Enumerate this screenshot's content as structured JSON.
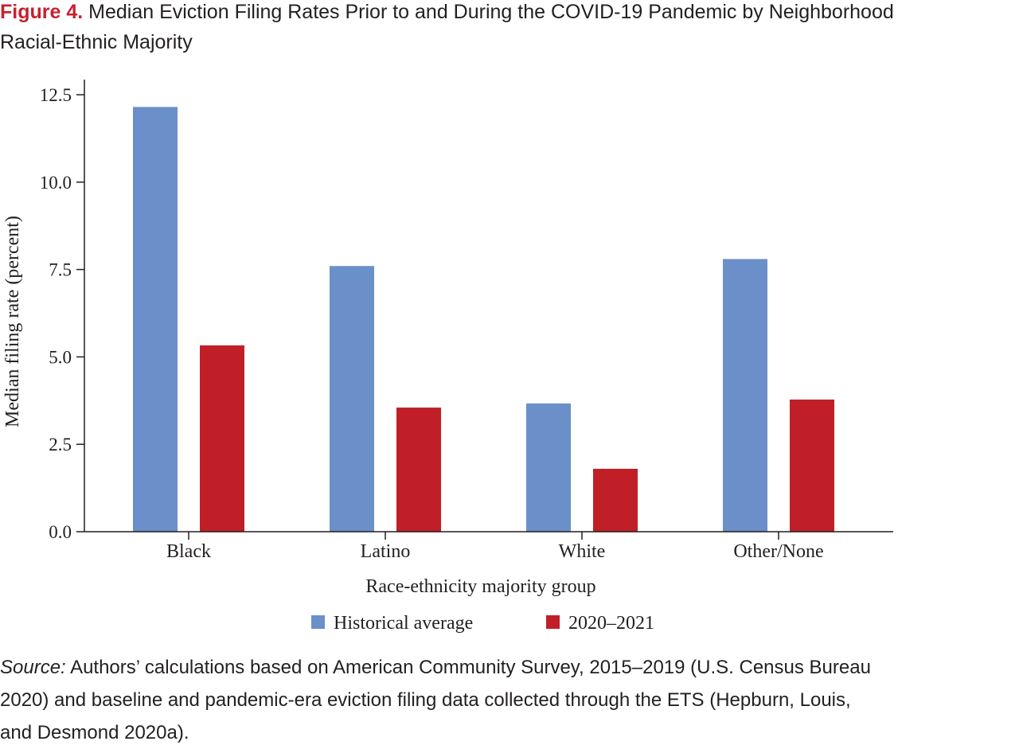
{
  "title": {
    "label": "Figure 4.",
    "text_line1": "Median Eviction Filing Rates Prior to and During the COVID-19 Pandemic by Neighborhood",
    "text_line2": "Racial-Ethnic Majority"
  },
  "chart_data": {
    "type": "bar",
    "categories": [
      "Black",
      "Latino",
      "White",
      "Other/None"
    ],
    "series": [
      {
        "name": "Historical average",
        "values": [
          12.15,
          7.6,
          3.67,
          7.8
        ],
        "color": "#6b8fc9"
      },
      {
        "name": "2020–2021",
        "values": [
          5.33,
          3.55,
          1.8,
          3.78
        ],
        "color": "#c01f27"
      }
    ],
    "xlabel": "Race-ethnicity majority group",
    "ylabel": "Median filing rate (percent)",
    "ylim": [
      0,
      12.5
    ],
    "yticks": [
      "0.0",
      "2.5",
      "5.0",
      "7.5",
      "10.0",
      "12.5"
    ],
    "grid": false,
    "legend_position": "bottom-center"
  },
  "source": {
    "label": "Source:",
    "line1": " Authors’ calculations based on American Community Survey, 2015–2019 (U.S. Census Bureau",
    "line2": "2020) and baseline and pandemic-era eviction filing data collected through the ETS (Hepburn, Louis,",
    "line3": "and Desmond 2020a)."
  }
}
